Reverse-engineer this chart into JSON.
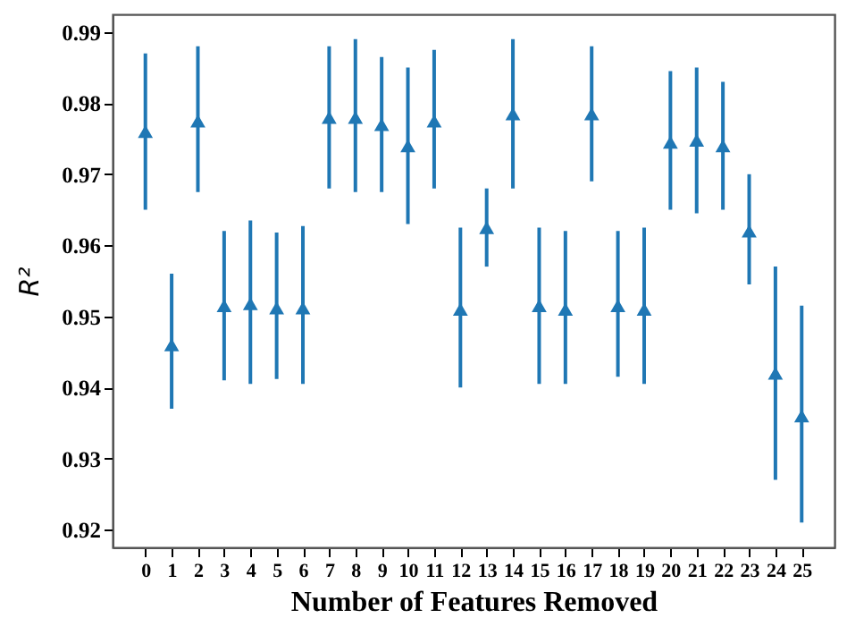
{
  "chart_data": {
    "type": "scatter",
    "xlabel": "Number of Features Removed",
    "ylabel": "R²",
    "x": [
      0,
      1,
      2,
      3,
      4,
      5,
      6,
      7,
      8,
      9,
      10,
      11,
      12,
      13,
      14,
      15,
      16,
      17,
      18,
      19,
      20,
      21,
      22,
      23,
      24,
      25
    ],
    "values": [
      0.976,
      0.946,
      0.9775,
      0.9515,
      0.9518,
      0.9512,
      0.9512,
      0.978,
      0.978,
      0.977,
      0.974,
      0.9775,
      0.951,
      0.9625,
      0.9785,
      0.9515,
      0.951,
      0.9785,
      0.9515,
      0.951,
      0.9745,
      0.9748,
      0.974,
      0.962,
      0.942,
      0.936
    ],
    "errors": [
      [
        0.965,
        0.987
      ],
      [
        0.937,
        0.956
      ],
      [
        0.9675,
        0.988
      ],
      [
        0.941,
        0.962
      ],
      [
        0.9405,
        0.9635
      ],
      [
        0.9412,
        0.9618
      ],
      [
        0.9405,
        0.9627
      ],
      [
        0.968,
        0.988
      ],
      [
        0.9675,
        0.989
      ],
      [
        0.9675,
        0.9865
      ],
      [
        0.963,
        0.985
      ],
      [
        0.968,
        0.9875
      ],
      [
        0.94,
        0.9625
      ],
      [
        0.957,
        0.968
      ],
      [
        0.968,
        0.989
      ],
      [
        0.9405,
        0.9625
      ],
      [
        0.9405,
        0.962
      ],
      [
        0.969,
        0.988
      ],
      [
        0.9415,
        0.962
      ],
      [
        0.9405,
        0.9625
      ],
      [
        0.965,
        0.9845
      ],
      [
        0.9645,
        0.985
      ],
      [
        0.965,
        0.983
      ],
      [
        0.9545,
        0.97
      ],
      [
        0.927,
        0.957
      ],
      [
        0.921,
        0.9515
      ]
    ],
    "color": "#1f77b4",
    "marker": "triangle",
    "xlim": [
      -1.25,
      26.25
    ],
    "xticks": [
      0,
      1,
      2,
      3,
      4,
      5,
      6,
      7,
      8,
      9,
      10,
      11,
      12,
      13,
      14,
      15,
      16,
      17,
      18,
      19,
      20,
      21,
      22,
      23,
      24,
      25
    ],
    "ylim": [
      0.9175,
      0.9925
    ],
    "yticks": [
      0.92,
      0.93,
      0.94,
      0.95,
      0.96,
      0.97,
      0.98,
      0.99
    ],
    "grid": false
  }
}
